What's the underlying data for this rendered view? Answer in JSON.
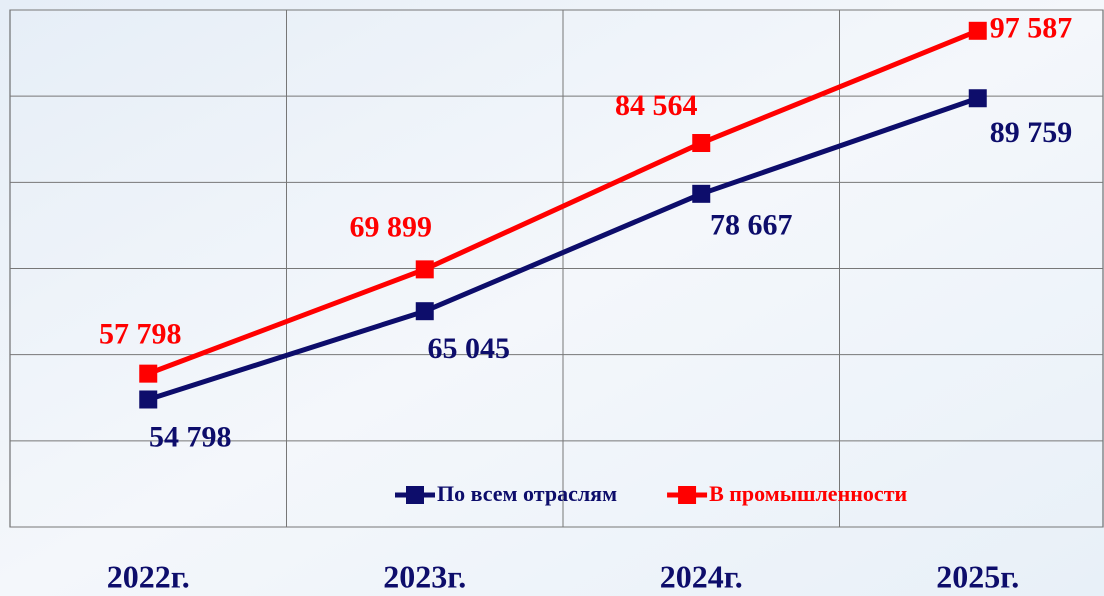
{
  "chart_data": {
    "type": "line",
    "categories": [
      "2022г.",
      "2023г.",
      "2024г.",
      "2025г."
    ],
    "series": [
      {
        "name": "По всем отраслям",
        "color": "#0d0d6b",
        "values": [
          54798,
          65045,
          78667,
          89759
        ],
        "value_labels": [
          "54 798",
          "65 045",
          "78 667",
          "89 759"
        ]
      },
      {
        "name": "В промышленности",
        "color": "#ff0000",
        "values": [
          57798,
          69899,
          84564,
          97587
        ],
        "value_labels": [
          "57 798",
          "69 899",
          "84 564",
          "97 587"
        ]
      }
    ],
    "ylim": [
      40000,
      100000
    ],
    "yticks": [
      40000,
      50000,
      60000,
      70000,
      80000,
      90000,
      100000
    ],
    "grid": true
  }
}
